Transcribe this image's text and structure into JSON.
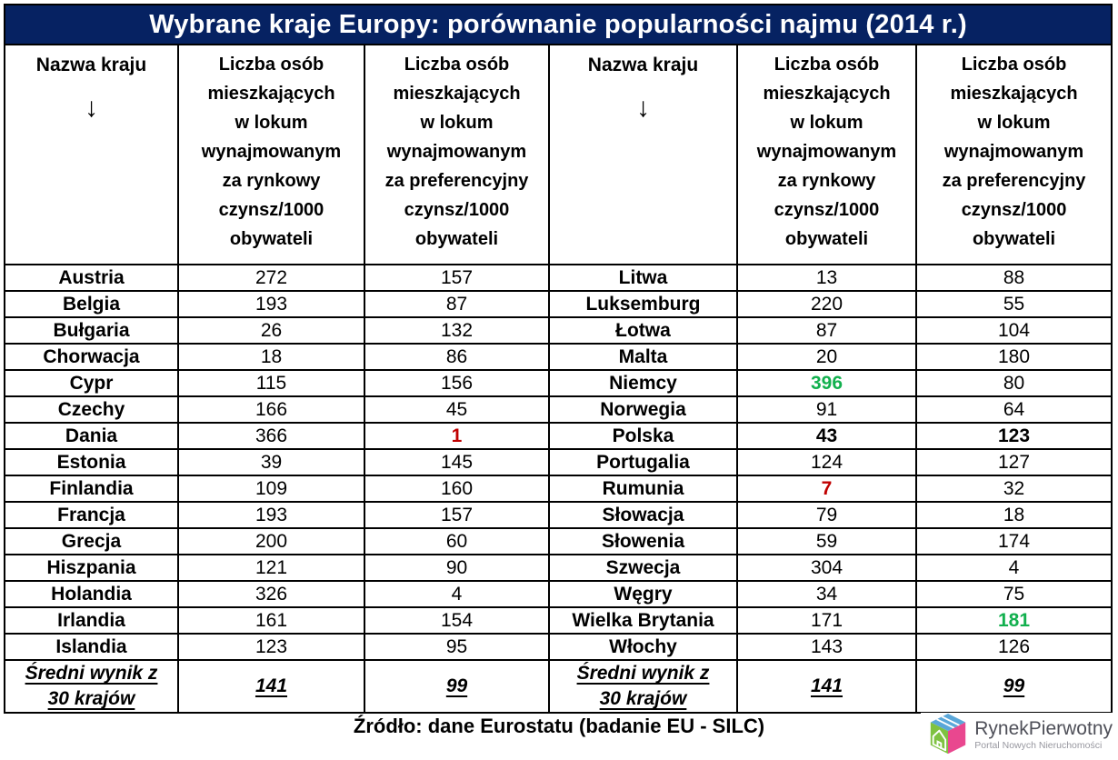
{
  "title": "Wybrane kraje Europy: porównanie popularności najmu (2014 r.)",
  "chart_data": {
    "type": "table",
    "title": "Wybrane kraje Europy: porównanie popularności najmu (2014 r.)",
    "columns": [
      "Nazwa kraju",
      "Liczba osób mieszkających w lokum wynajmowanym za rynkowy czynsz/1000 obywateli",
      "Liczba osób mieszkających w lokum wynajmowanym za preferencyjny czynsz/1000 obywateli"
    ],
    "rows": [
      {
        "country": "Austria",
        "market": 272,
        "pref": 157
      },
      {
        "country": "Belgia",
        "market": 193,
        "pref": 87
      },
      {
        "country": "Bułgaria",
        "market": 26,
        "pref": 132
      },
      {
        "country": "Chorwacja",
        "market": 18,
        "pref": 86
      },
      {
        "country": "Cypr",
        "market": 115,
        "pref": 156
      },
      {
        "country": "Czechy",
        "market": 166,
        "pref": 45
      },
      {
        "country": "Dania",
        "market": 366,
        "pref": 1,
        "pref_style": "negative"
      },
      {
        "country": "Estonia",
        "market": 39,
        "pref": 145
      },
      {
        "country": "Finlandia",
        "market": 109,
        "pref": 160
      },
      {
        "country": "Francja",
        "market": 193,
        "pref": 157
      },
      {
        "country": "Grecja",
        "market": 200,
        "pref": 60
      },
      {
        "country": "Hiszpania",
        "market": 121,
        "pref": 90
      },
      {
        "country": "Holandia",
        "market": 326,
        "pref": 4
      },
      {
        "country": "Irlandia",
        "market": 161,
        "pref": 154
      },
      {
        "country": "Islandia",
        "market": 123,
        "pref": 95
      },
      {
        "country": "Litwa",
        "market": 13,
        "pref": 88
      },
      {
        "country": "Luksemburg",
        "market": 220,
        "pref": 55
      },
      {
        "country": "Łotwa",
        "market": 87,
        "pref": 104
      },
      {
        "country": "Malta",
        "market": 20,
        "pref": 180
      },
      {
        "country": "Niemcy",
        "market": 396,
        "pref": 80,
        "market_style": "positive"
      },
      {
        "country": "Norwegia",
        "market": 91,
        "pref": 64
      },
      {
        "country": "Polska",
        "market": 43,
        "pref": 123,
        "market_style": "bold",
        "pref_style": "bold"
      },
      {
        "country": "Portugalia",
        "market": 124,
        "pref": 127
      },
      {
        "country": "Rumunia",
        "market": 7,
        "pref": 32,
        "market_style": "negative"
      },
      {
        "country": "Słowacja",
        "market": 79,
        "pref": 18
      },
      {
        "country": "Słowenia",
        "market": 59,
        "pref": 174
      },
      {
        "country": "Szwecja",
        "market": 304,
        "pref": 4
      },
      {
        "country": "Węgry",
        "market": 34,
        "pref": 75
      },
      {
        "country": "Wielka Brytania",
        "market": 171,
        "pref": 181,
        "pref_style": "positive"
      },
      {
        "country": "Włochy",
        "market": 143,
        "pref": 126
      }
    ],
    "summary": {
      "label": "Średni wynik z 30 krajów",
      "market": 141,
      "pref": 99
    },
    "layout": "two column-groups of 15 countries side by side",
    "source": "Źródło: dane Eurostatu (badanie EU - SILC)"
  },
  "ui": {
    "name_header": {
      "title": "Nazwa kraju",
      "arrow": "↓"
    },
    "market_header_lines": [
      "Liczba osób",
      "mieszkających",
      "w lokum",
      "wynajmowanym",
      "za rynkowy",
      "czynsz/1000",
      "obywateli"
    ],
    "pref_header_lines": [
      "Liczba osób",
      "mieszkających",
      "w lokum",
      "wynajmowanym",
      "za preferencyjny",
      "czynsz/1000",
      "obywateli"
    ],
    "summary_label_lines": [
      "Średni wynik z",
      "30 krajów"
    ]
  },
  "source": "Źródło: dane Eurostatu (badanie EU - SILC)",
  "logo": {
    "brand": "RynekPierwotny",
    "tagline": "Portal Nowych Nieruchomości"
  },
  "colors": {
    "header_bg": "#062262",
    "positive": "#12b04e",
    "negative": "#c00000"
  }
}
